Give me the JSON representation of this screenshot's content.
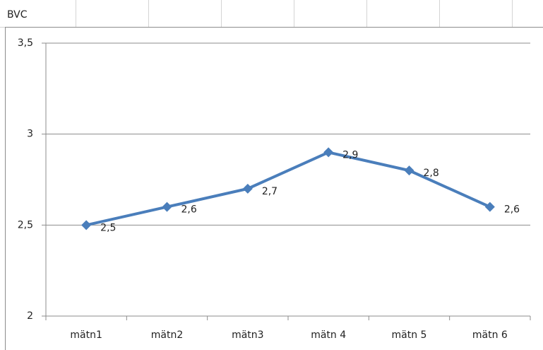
{
  "chart_data": {
    "type": "line",
    "title": "BVC",
    "categories": [
      "mätn1",
      "mätn2",
      "mätn3",
      "mätn 4",
      "mätn 5",
      "mätn 6"
    ],
    "values": [
      2.5,
      2.6,
      2.7,
      2.9,
      2.8,
      2.6
    ],
    "value_labels": [
      "2,5",
      "2,6",
      "2,7",
      "2,9",
      "2,8",
      "2,6"
    ],
    "color": "#4a7ebb",
    "ylim": [
      2,
      3.5
    ],
    "yticks": [
      2,
      {
        "value": 2.5,
        "label": "2,5"
      },
      3,
      {
        "value": 3.5,
        "label": "3,5"
      }
    ],
    "grid": true
  }
}
